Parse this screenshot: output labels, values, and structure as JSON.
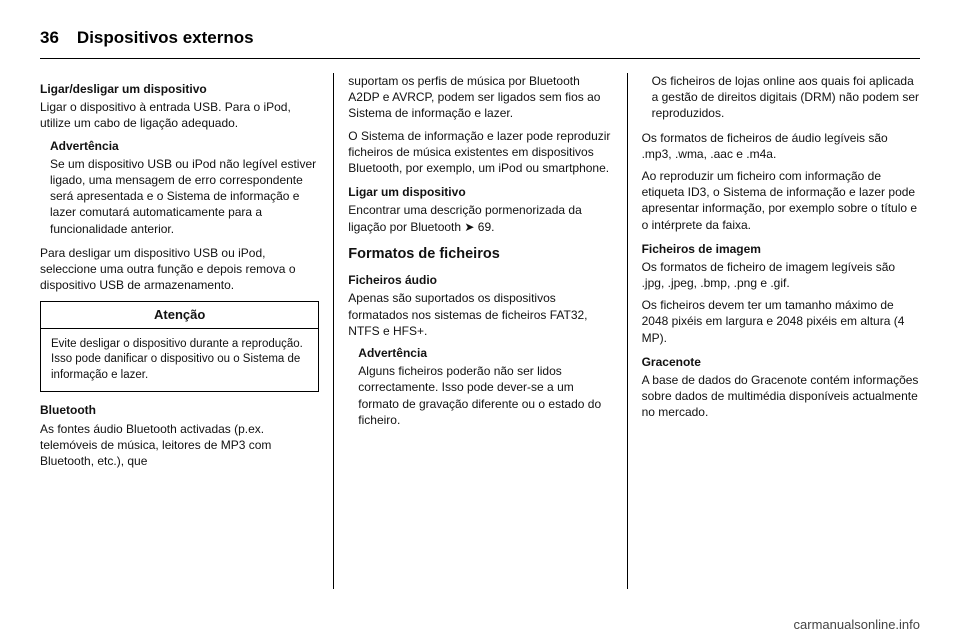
{
  "page_number": "36",
  "page_title": "Dispositivos externos",
  "footer": "carmanualsonline.info",
  "col1": {
    "h_ligar": "Ligar/desligar um dispositivo",
    "p1": "Ligar o dispositivo à entrada USB. Para o iPod, utilize um cabo de ligação adequado.",
    "adv_h": "Advertência",
    "adv_p": "Se um dispositivo USB ou iPod não legível estiver ligado, uma mensagem de erro correspondente será apresentada e o Sistema de informação e lazer comutará automaticamente para a funcionalidade anterior.",
    "p2": "Para desligar um dispositivo USB ou iPod, seleccione uma outra função e depois remova o dispositivo USB de armazenamento.",
    "box_title": "Atenção",
    "box_body": "Evite desligar o dispositivo durante a reprodução. Isso pode danificar o dispositivo ou o Sistema de informação e lazer.",
    "h_bt": "Bluetooth",
    "p3": "As fontes áudio Bluetooth activadas (p.ex. telemóveis de música, leitores de MP3 com Bluetooth, etc.), que"
  },
  "col2": {
    "p1": "suportam os perfis de música por Bluetooth A2DP e AVRCP, podem ser ligados sem fios ao Sistema de informação e lazer.",
    "p2": "O Sistema de informação e lazer pode reproduzir ficheiros de música existentes em dispositivos Bluetooth, por exemplo, um iPod ou smartphone.",
    "h_ligar_disp": "Ligar um dispositivo",
    "p3a": "Encontrar uma descrição pormenorizada da ligação por Bluetooth ",
    "p3_ref": "69",
    "p3b": ".",
    "h_formatos": "Formatos de ficheiros",
    "h_fich_audio": "Ficheiros áudio",
    "p4": "Apenas são suportados os dispositivos formatados nos sistemas de ficheiros FAT32, NTFS e HFS+.",
    "adv_h": "Advertência",
    "adv_p": "Alguns ficheiros poderão não ser lidos correctamente. Isso pode dever-se a um formato de gravação diferente ou o estado do ficheiro."
  },
  "col3": {
    "p1": "Os ficheiros de lojas online aos quais foi aplicada a gestão de direitos digitais (DRM) não podem ser reproduzidos.",
    "p2": "Os formatos de ficheiros de áudio legíveis são .mp3, .wma, .aac e .m4a.",
    "p3": "Ao reproduzir um ficheiro com informação de etiqueta ID3, o Sistema de informação e lazer pode apresentar informação, por exemplo sobre o título e o intérprete da faixa.",
    "h_img": "Ficheiros de imagem",
    "p4": "Os formatos de ficheiro de imagem legíveis são .jpg, .jpeg, .bmp, .png e .gif.",
    "p5": "Os ficheiros devem ter um tamanho máximo de 2048 pixéis em largura e 2048 pixéis em altura (4 MP).",
    "h_grace": "Gracenote",
    "p6": "A base de dados do Gracenote contém informações sobre dados de multimédia disponíveis actualmente no mercado."
  }
}
